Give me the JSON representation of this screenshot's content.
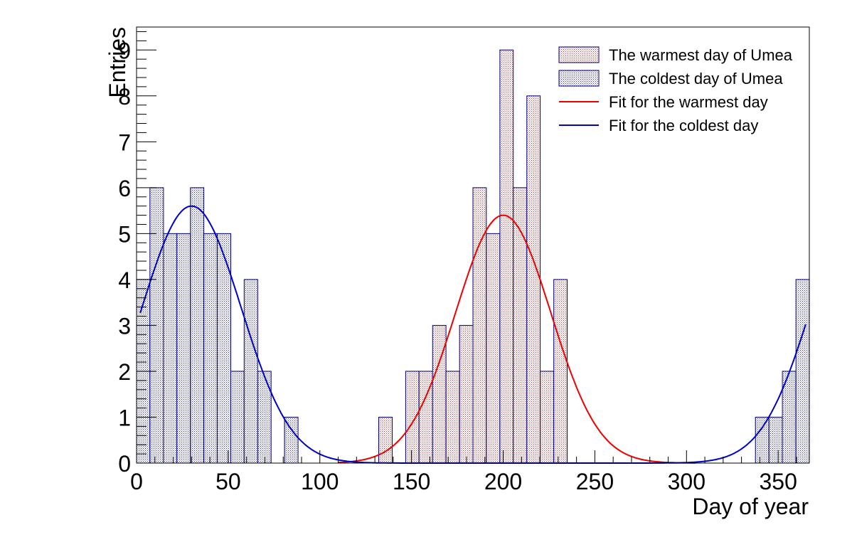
{
  "chart_data": {
    "type": "bar",
    "xlabel": "Day of year",
    "ylabel": "Entries",
    "xlim": [
      0,
      367
    ],
    "ylim": [
      0,
      9.5
    ],
    "x_ticks": [
      0,
      50,
      100,
      150,
      200,
      250,
      300,
      350
    ],
    "y_ticks": [
      0,
      1,
      2,
      3,
      4,
      5,
      6,
      7,
      8,
      9
    ],
    "grid": false,
    "legend_position": "top-right",
    "bin_width": 7.34,
    "histograms": [
      {
        "name": "The warmest day of Umea",
        "fill_color": "#f0d8d8",
        "line_color": "#000080",
        "bins": [
          {
            "x0": 132.1,
            "x1": 139.5,
            "value": 1
          },
          {
            "x0": 146.8,
            "x1": 154.1,
            "value": 2
          },
          {
            "x0": 154.1,
            "x1": 161.5,
            "value": 2
          },
          {
            "x0": 161.5,
            "x1": 168.8,
            "value": 3
          },
          {
            "x0": 168.8,
            "x1": 176.2,
            "value": 2
          },
          {
            "x0": 176.2,
            "x1": 183.5,
            "value": 3
          },
          {
            "x0": 183.5,
            "x1": 190.8,
            "value": 6
          },
          {
            "x0": 190.8,
            "x1": 198.2,
            "value": 5
          },
          {
            "x0": 198.2,
            "x1": 205.5,
            "value": 9
          },
          {
            "x0": 205.5,
            "x1": 212.9,
            "value": 6
          },
          {
            "x0": 212.9,
            "x1": 220.2,
            "value": 8
          },
          {
            "x0": 220.2,
            "x1": 227.6,
            "value": 2
          },
          {
            "x0": 227.6,
            "x1": 234.9,
            "value": 4
          }
        ]
      },
      {
        "name": "The coldest day of Umea",
        "fill_color": "#d8dcec",
        "line_color": "#000080",
        "bins": [
          {
            "x0": 0,
            "x1": 7.3,
            "value": 4
          },
          {
            "x0": 7.3,
            "x1": 14.7,
            "value": 6
          },
          {
            "x0": 14.7,
            "x1": 22.0,
            "value": 5
          },
          {
            "x0": 22.0,
            "x1": 29.4,
            "value": 5
          },
          {
            "x0": 29.4,
            "x1": 36.7,
            "value": 6
          },
          {
            "x0": 36.7,
            "x1": 44.0,
            "value": 5
          },
          {
            "x0": 44.0,
            "x1": 51.4,
            "value": 5
          },
          {
            "x0": 51.4,
            "x1": 58.7,
            "value": 2
          },
          {
            "x0": 58.7,
            "x1": 66.1,
            "value": 4
          },
          {
            "x0": 66.1,
            "x1": 73.4,
            "value": 2
          },
          {
            "x0": 80.7,
            "x1": 88.1,
            "value": 1
          },
          {
            "x0": 337.6,
            "x1": 345.0,
            "value": 1
          },
          {
            "x0": 345.0,
            "x1": 352.3,
            "value": 1
          },
          {
            "x0": 352.3,
            "x1": 359.7,
            "value": 2
          },
          {
            "x0": 359.7,
            "x1": 367.0,
            "value": 4
          }
        ]
      }
    ],
    "fits": [
      {
        "name": "Fit for the warmest day",
        "color": "#ee0000",
        "function": "gaussian",
        "amplitude": 5.4,
        "mean": 200,
        "sigma": 26,
        "range": [
          110,
          305
        ]
      },
      {
        "name": "Fit for the coldest day",
        "color": "#0000cc",
        "function": "periodic-gaussian",
        "amplitude": 5.6,
        "mean": 30,
        "sigma": 27,
        "period": 365,
        "range": [
          2,
          365
        ]
      }
    ]
  }
}
